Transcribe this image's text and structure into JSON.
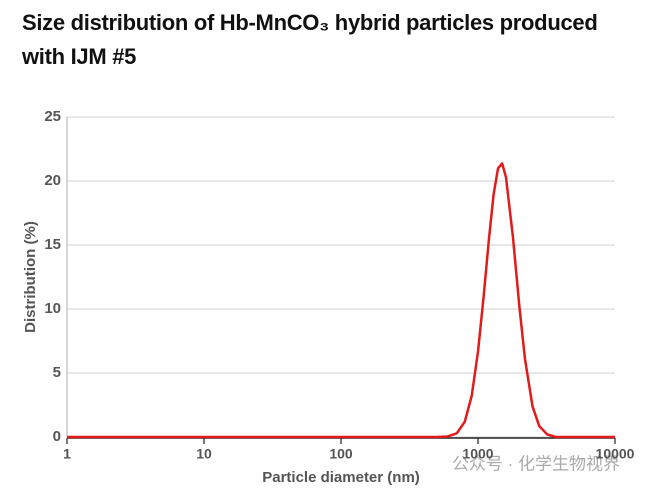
{
  "chart_data": {
    "type": "line",
    "title": "Size distribution of Hb-MnCO₃ hybrid particles produced with IJM #5",
    "x_label": "Particle diameter (nm)",
    "y_label": "Distribution (%)",
    "x": [
      1,
      10,
      100,
      500,
      600,
      700,
      800,
      900,
      1000,
      1100,
      1200,
      1300,
      1400,
      1500,
      1600,
      1800,
      2000,
      2200,
      2500,
      2800,
      3200,
      3700,
      5000,
      10000
    ],
    "series": [
      {
        "color": "#e01b1b",
        "values": [
          0,
          0,
          0,
          0,
          0.04,
          0.29,
          1.18,
          3.23,
          6.67,
          11.0,
          15.4,
          18.96,
          20.98,
          21.37,
          20.3,
          15.6,
          10.3,
          6.13,
          2.39,
          0.85,
          0.2,
          0,
          0,
          0
        ]
      }
    ],
    "xlim": [
      1,
      10000
    ],
    "xticks": [
      1,
      10,
      100,
      1000,
      10000
    ],
    "xscale": "log",
    "ylim": [
      0,
      25
    ],
    "yticks": [
      0,
      5,
      10,
      15,
      20,
      25
    ],
    "grid": true,
    "watermark": "公众号 · 化学生物视界"
  }
}
